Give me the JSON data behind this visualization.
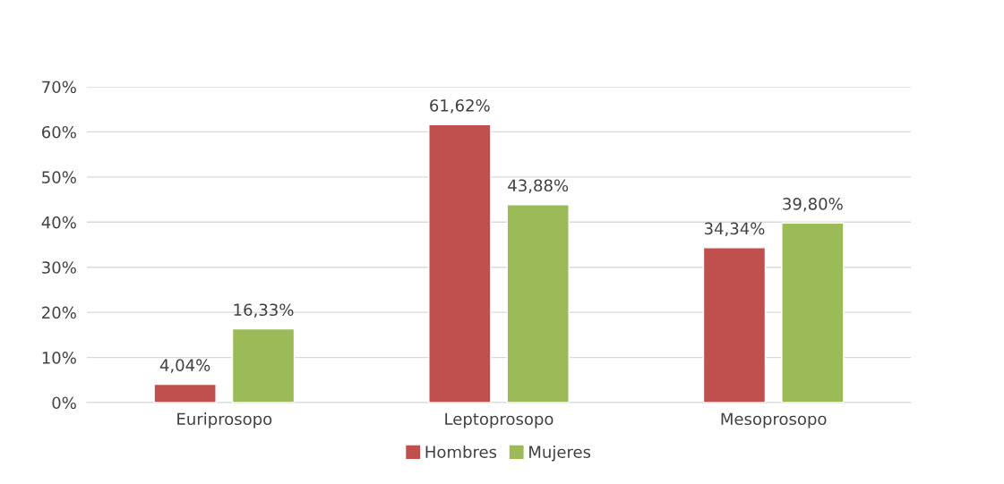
{
  "chart_data": {
    "type": "bar",
    "categories": [
      "Euriprosopo",
      "Leptoprosopo",
      "Mesoprosopo"
    ],
    "series": [
      {
        "name": "Hombres",
        "color": "#c0504d",
        "values": [
          4.04,
          61.62,
          34.34
        ],
        "value_labels": [
          "4,04%",
          "61,62%",
          "34,34%"
        ]
      },
      {
        "name": "Mujeres",
        "color": "#9bbb59",
        "values": [
          16.33,
          43.88,
          39.8
        ],
        "value_labels": [
          "16,33%",
          "43,88%",
          "39,80%"
        ]
      }
    ],
    "ylim": [
      0,
      70
    ],
    "yticks": [
      {
        "value": 0,
        "label": "0%"
      },
      {
        "value": 10,
        "label": "10%"
      },
      {
        "value": 20,
        "label": "20%"
      },
      {
        "value": 30,
        "label": "30%"
      },
      {
        "value": 40,
        "label": "40%"
      },
      {
        "value": 50,
        "label": "50%"
      },
      {
        "value": 60,
        "label": "60%"
      },
      {
        "value": 70,
        "label": "70%"
      }
    ],
    "grid": "y",
    "legend": "bottom"
  }
}
